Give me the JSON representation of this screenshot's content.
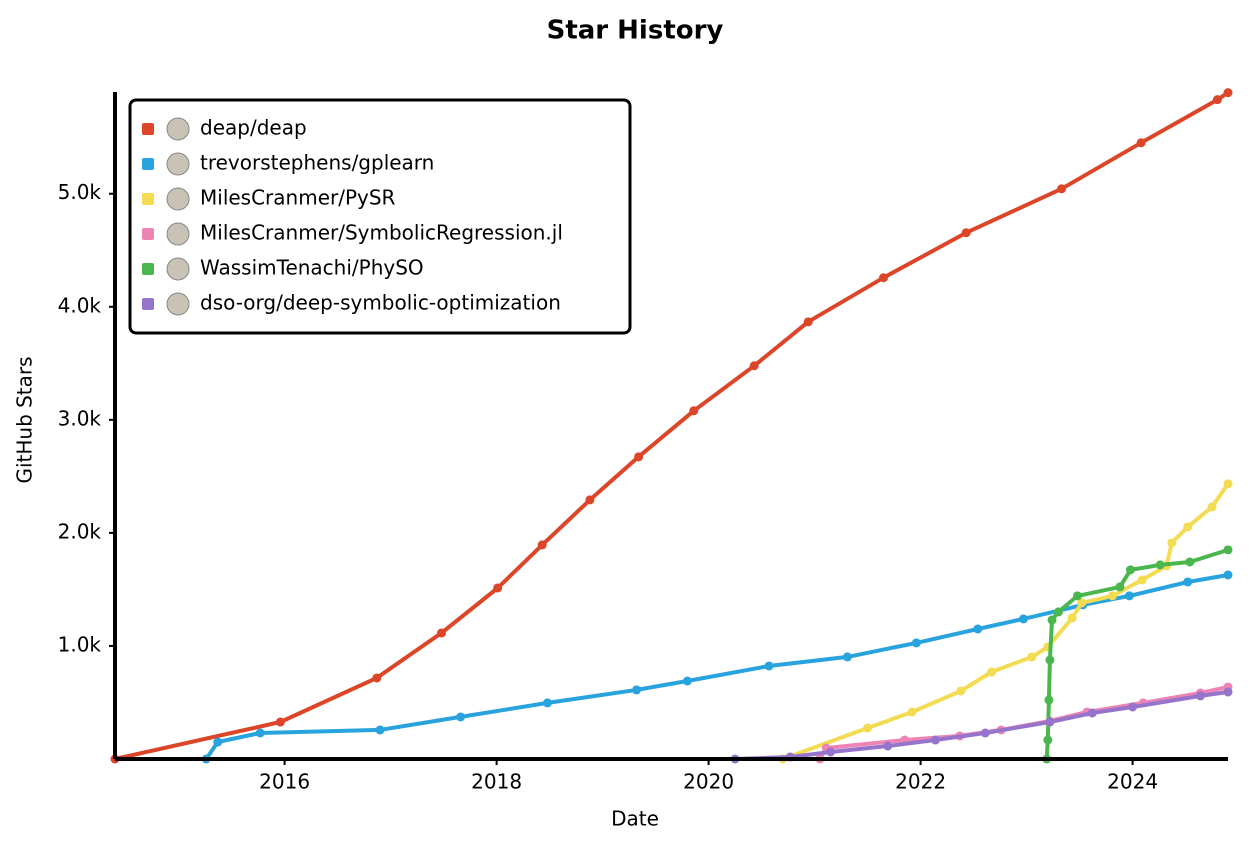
{
  "chart_data": {
    "type": "line",
    "title": "Star History",
    "x_label": "Date",
    "y_label": "GitHub Stars",
    "xlim": [
      2014.4,
      2024.9
    ],
    "xticks": [
      2016,
      2018,
      2020,
      2022,
      2024
    ],
    "ylim": [
      0,
      5900
    ],
    "yticks": [
      {
        "value": 1000,
        "label": "1.0k"
      },
      {
        "value": 2000,
        "label": "2.0k"
      },
      {
        "value": 3000,
        "label": "3.0k"
      },
      {
        "value": 4000,
        "label": "4.0k"
      },
      {
        "value": 5000,
        "label": "5.0k"
      }
    ],
    "legend": "upper left",
    "series": [
      {
        "name": "deap/deap",
        "color": "#dd4528",
        "x": [
          2014.4,
          2015.96,
          2016.87,
          2017.48,
          2018.01,
          2018.43,
          2018.88,
          2019.34,
          2019.86,
          2020.43,
          2020.94,
          2021.65,
          2022.43,
          2023.33,
          2024.08,
          2024.8,
          2024.9
        ],
        "values": [
          0,
          327,
          717,
          1115,
          1513,
          1894,
          2292,
          2673,
          3080,
          3478,
          3867,
          4257,
          4655,
          5044,
          5451,
          5832,
          5894
        ]
      },
      {
        "name": "trevorstephens/gplearn",
        "color": "#28a3dd",
        "x": [
          2015.26,
          2015.37,
          2015.77,
          2016.9,
          2017.66,
          2018.48,
          2019.32,
          2019.8,
          2020.57,
          2021.31,
          2021.96,
          2022.54,
          2022.97,
          2023.53,
          2023.97,
          2024.52,
          2024.9
        ],
        "values": [
          0,
          150,
          230,
          257,
          372,
          496,
          611,
          690,
          823,
          903,
          1027,
          1150,
          1239,
          1363,
          1443,
          1566,
          1628
        ]
      },
      {
        "name": "MilesCranmer/PySR",
        "color": "#f3db52",
        "x": [
          2020.7,
          2021.5,
          2021.92,
          2022.38,
          2022.67,
          2023.05,
          2023.2,
          2023.43,
          2023.52,
          2023.81,
          2024.09,
          2024.32,
          2024.37,
          2024.52,
          2024.75,
          2024.9
        ],
        "values": [
          0,
          274,
          416,
          602,
          770,
          903,
          991,
          1248,
          1381,
          1443,
          1584,
          1708,
          1912,
          2053,
          2230,
          2434
        ]
      },
      {
        "name": "MilesCranmer/SymbolicRegression.jl",
        "color": "#ed84b5",
        "x": [
          2021.05,
          2021.11,
          2021.85,
          2022.37,
          2022.76,
          2023.22,
          2023.57,
          2024.1,
          2024.64,
          2024.9
        ],
        "values": [
          0,
          97,
          168,
          204,
          257,
          336,
          416,
          496,
          584,
          637
        ]
      },
      {
        "name": "WassimTenachi/PhySO",
        "color": "#4ab74e",
        "x": [
          2023.19,
          2023.2,
          2023.21,
          2023.22,
          2023.24,
          2023.3,
          2023.48,
          2023.88,
          2023.98,
          2024.26,
          2024.54,
          2024.9
        ],
        "values": [
          0,
          168,
          522,
          876,
          1230,
          1301,
          1443,
          1522,
          1673,
          1717,
          1743,
          1850
        ]
      },
      {
        "name": "dso-org/deep-symbolic-optimization",
        "color": "#9774cb",
        "x": [
          2020.25,
          2020.77,
          2021.15,
          2021.69,
          2022.14,
          2022.61,
          2023.22,
          2023.62,
          2024.0,
          2024.64,
          2024.9
        ],
        "values": [
          0,
          18,
          62,
          115,
          168,
          230,
          327,
          407,
          460,
          558,
          593
        ]
      }
    ]
  }
}
